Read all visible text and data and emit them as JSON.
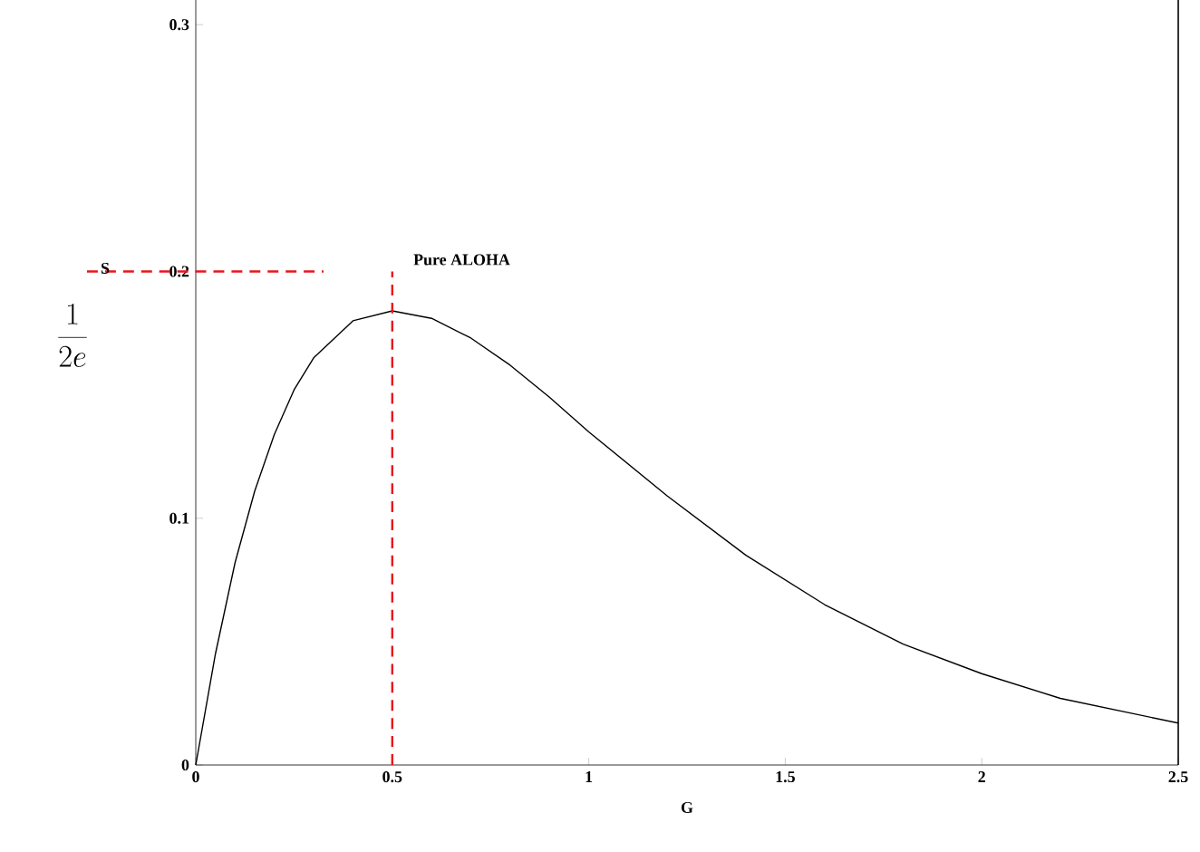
{
  "chart_data": {
    "type": "line",
    "xlabel": "G",
    "ylabel": "S",
    "annotations": [
      "\\frac{1}{2e}"
    ],
    "x": [
      0,
      0.05,
      0.1,
      0.15,
      0.2,
      0.25,
      0.3,
      0.4,
      0.5,
      0.6,
      0.7,
      0.8,
      0.9,
      1.0,
      1.2,
      1.4,
      1.6,
      1.8,
      2.0,
      2.2,
      2.5
    ],
    "series": [
      {
        "name": "Pure ALOHA",
        "color": "#000000",
        "values": [
          0,
          0.045,
          0.082,
          0.111,
          0.134,
          0.152,
          0.165,
          0.18,
          0.184,
          0.181,
          0.173,
          0.162,
          0.149,
          0.135,
          0.109,
          0.085,
          0.065,
          0.049,
          0.037,
          0.027,
          0.017
        ]
      }
    ],
    "xlim": [
      0,
      2.5
    ],
    "ylim": [
      0,
      0.31
    ],
    "xticks": [
      0,
      0.5,
      1,
      1.5,
      2,
      2.5
    ],
    "yticks": [
      0,
      0.1,
      0.2,
      0.3
    ],
    "ref_lines": [
      {
        "axis": "y",
        "value": 0.2,
        "color": "#e8141e",
        "line_style": "dashed"
      },
      {
        "axis": "x",
        "value": 0.5,
        "color": "#e8141e",
        "line_style": "dashed"
      }
    ],
    "grid": false,
    "legend": false,
    "marker": "none",
    "line_style": "solid"
  }
}
